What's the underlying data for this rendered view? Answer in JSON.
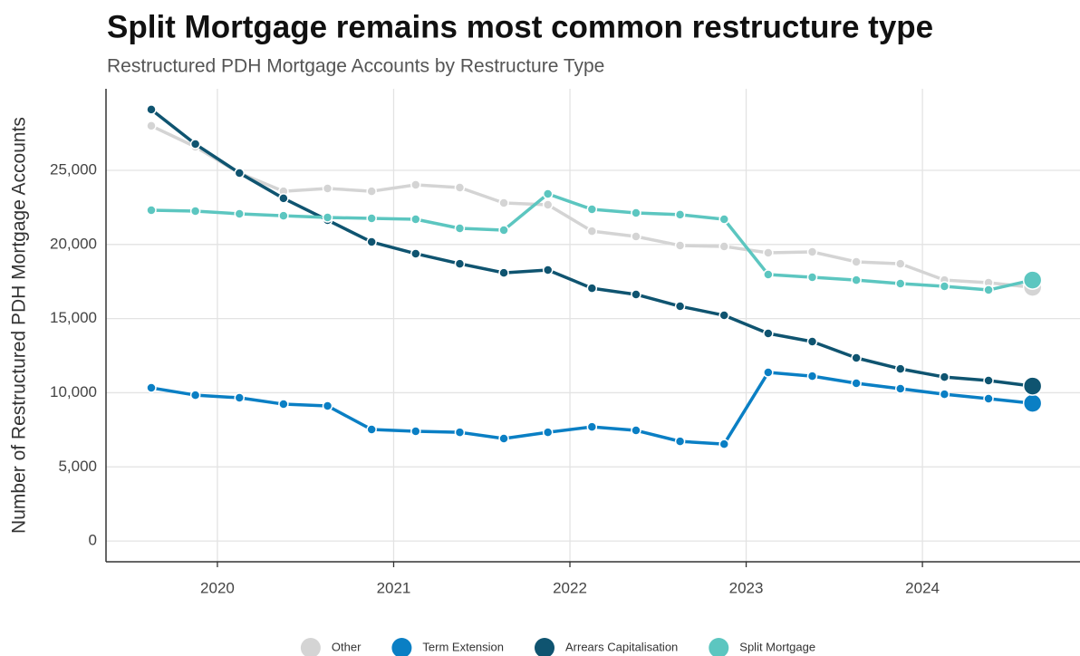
{
  "chart_data": {
    "type": "line",
    "title": "Split Mortgage remains most common restructure type",
    "subtitle": "Restructured PDH Mortgage Accounts by Restructure Type",
    "y_label": "Number of Restructured PDH Mortgage Accounts",
    "x": [
      2019.625,
      2019.875,
      2020.125,
      2020.375,
      2020.625,
      2020.875,
      2021.125,
      2021.375,
      2021.625,
      2021.875,
      2022.125,
      2022.375,
      2022.625,
      2022.875,
      2023.125,
      2023.375,
      2023.625,
      2023.875,
      2024.125,
      2024.375,
      2024.625
    ],
    "series": [
      {
        "name": "Other",
        "color": "#d4d4d4",
        "values": [
          28000,
          26590,
          24820,
          23590,
          23780,
          23590,
          24020,
          23840,
          22800,
          22680,
          20900,
          20540,
          19930,
          19870,
          19440,
          19500,
          18830,
          18700,
          17600,
          17420,
          17110
        ]
      },
      {
        "name": "Term Extension",
        "color": "#0a7fc4",
        "values": [
          10330,
          9840,
          9660,
          9230,
          9110,
          7520,
          7400,
          7330,
          6910,
          7330,
          7700,
          7460,
          6720,
          6540,
          11370,
          11120,
          10640,
          10270,
          9900,
          9600,
          9290
        ]
      },
      {
        "name": "Arrears Capitalisation",
        "color": "#0f5470",
        "values": [
          29100,
          26770,
          24820,
          23110,
          21640,
          20170,
          19380,
          18700,
          18090,
          18280,
          17050,
          16630,
          15830,
          15220,
          14000,
          13450,
          12350,
          11610,
          11060,
          10820,
          10450
        ]
      },
      {
        "name": "Split Mortgage",
        "color": "#5cc6c0",
        "values": [
          22310,
          22250,
          22070,
          21940,
          21820,
          21760,
          21700,
          21090,
          20970,
          23410,
          22370,
          22130,
          22010,
          21700,
          17970,
          17790,
          17600,
          17360,
          17180,
          16930,
          17600
        ]
      }
    ],
    "xlim": [
      2019.368,
      2024.894
    ],
    "xticks": [
      2020,
      2021,
      2022,
      2023,
      2024
    ],
    "ylim": [
      -1400,
      30500
    ],
    "yticks": [
      0,
      {
        "value": 5000,
        "label": "5,000"
      },
      {
        "value": 10000,
        "label": "10,000"
      },
      {
        "value": 15000,
        "label": "15,000"
      },
      {
        "value": 20000,
        "label": "20,000"
      },
      {
        "value": 25000,
        "label": "25,000"
      }
    ],
    "grid": true,
    "legend": "bottom"
  }
}
